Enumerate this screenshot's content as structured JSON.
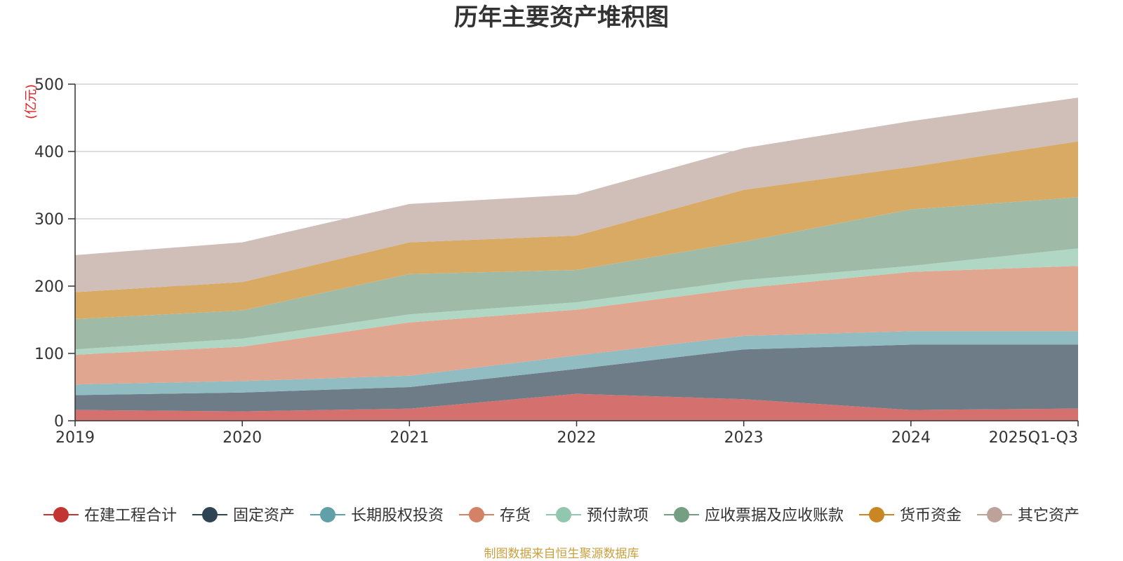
{
  "chart_data": {
    "type": "area",
    "stacked": true,
    "title": "历年主要资产堆积图",
    "ylabel": "(亿元)",
    "xlabel": "",
    "ylim": [
      0,
      500
    ],
    "yticks": [
      0,
      100,
      200,
      300,
      400,
      500
    ],
    "categories": [
      "2019",
      "2020",
      "2021",
      "2022",
      "2023",
      "2024",
      "2025Q1-Q3"
    ],
    "series": [
      {
        "name": "在建工程合计",
        "color": "#c23531",
        "fill": "#d4706e",
        "values": [
          16,
          14,
          18,
          40,
          32,
          16,
          18
        ]
      },
      {
        "name": "固定资产",
        "color": "#2f4554",
        "fill": "#6e7c87",
        "values": [
          22,
          28,
          32,
          37,
          74,
          97,
          95
        ]
      },
      {
        "name": "长期股权投资",
        "color": "#61a0a8",
        "fill": "#91bcc1",
        "values": [
          16,
          17,
          17,
          20,
          20,
          20,
          20
        ]
      },
      {
        "name": "存货",
        "color": "#d48265",
        "fill": "#e1a690",
        "values": [
          44,
          51,
          79,
          68,
          71,
          88,
          97
        ]
      },
      {
        "name": "预付款项",
        "color": "#91c7ae",
        "fill": "#b0d6c4",
        "values": [
          8,
          12,
          12,
          11,
          12,
          9,
          26
        ]
      },
      {
        "name": "应收票据及应收账款",
        "color": "#749f83",
        "fill": "#9fbba8",
        "values": [
          45,
          42,
          60,
          48,
          57,
          84,
          76
        ]
      },
      {
        "name": "货币资金",
        "color": "#ca8622",
        "fill": "#d8aa63",
        "values": [
          40,
          42,
          47,
          51,
          77,
          63,
          83
        ]
      },
      {
        "name": "其它资产",
        "color": "#bda29a",
        "fill": "#d0beb8",
        "values": [
          55,
          59,
          57,
          61,
          62,
          68,
          65
        ]
      }
    ],
    "legend_position": "bottom",
    "grid": true
  },
  "footer": {
    "source": "制图数据来自恒生聚源数据库"
  }
}
